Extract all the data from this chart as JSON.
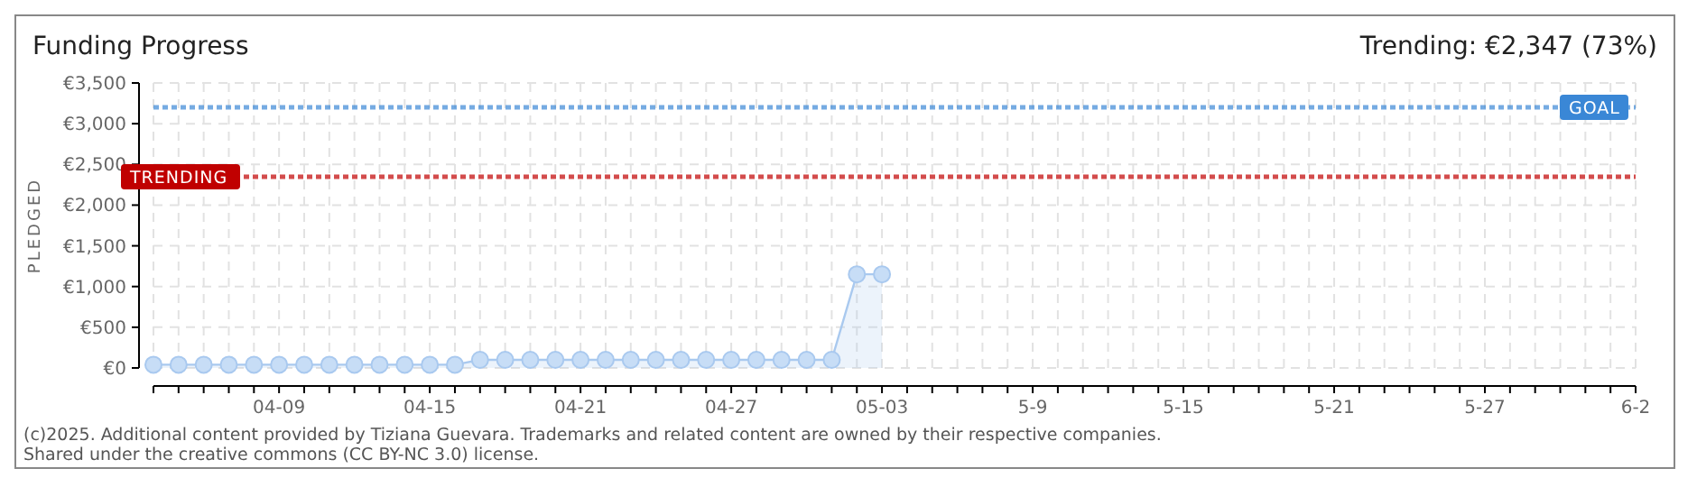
{
  "chart_data": {
    "type": "area",
    "title": "Funding Progress",
    "subtitle": "Trending: €2,347 (73%)",
    "ylabel": "PLEDGED",
    "x": [
      "--04-04",
      "--04-05",
      "--04-06",
      "--04-07",
      "--04-08",
      "--04-09",
      "--04-10",
      "--04-11",
      "--04-12",
      "--04-13",
      "--04-14",
      "--04-15",
      "--04-16",
      "--04-17",
      "--04-18",
      "--04-19",
      "--04-20",
      "--04-21",
      "--04-22",
      "--04-23",
      "--04-24",
      "--04-25",
      "--04-26",
      "--04-27",
      "--04-28",
      "--04-29",
      "--04-30",
      "--05-01",
      "--05-02",
      "--05-03"
    ],
    "series": [
      {
        "color": "#a9c9ef",
        "values": [
          40,
          40,
          40,
          40,
          40,
          40,
          40,
          40,
          40,
          40,
          40,
          40,
          40,
          100,
          100,
          100,
          100,
          100,
          100,
          100,
          100,
          100,
          100,
          100,
          100,
          100,
          100,
          100,
          1150,
          1150
        ]
      }
    ],
    "marker": "circle",
    "grid": true,
    "xlim": [
      "--04-04",
      "--06-02"
    ],
    "xticks": [
      {
        "value": "--04-04",
        "label": null
      },
      {
        "value": "--04-05",
        "label": null
      },
      {
        "value": "--04-06",
        "label": null
      },
      {
        "value": "--04-07",
        "label": null
      },
      {
        "value": "--04-08",
        "label": null
      },
      {
        "value": "--04-09",
        "label": "04-09"
      },
      {
        "value": "--04-10",
        "label": null
      },
      {
        "value": "--04-11",
        "label": null
      },
      {
        "value": "--04-12",
        "label": null
      },
      {
        "value": "--04-13",
        "label": null
      },
      {
        "value": "--04-14",
        "label": null
      },
      {
        "value": "--04-15",
        "label": "04-15"
      },
      {
        "value": "--04-16",
        "label": null
      },
      {
        "value": "--04-17",
        "label": null
      },
      {
        "value": "--04-18",
        "label": null
      },
      {
        "value": "--04-19",
        "label": null
      },
      {
        "value": "--04-20",
        "label": null
      },
      {
        "value": "--04-21",
        "label": "04-21"
      },
      {
        "value": "--04-22",
        "label": null
      },
      {
        "value": "--04-23",
        "label": null
      },
      {
        "value": "--04-24",
        "label": null
      },
      {
        "value": "--04-25",
        "label": null
      },
      {
        "value": "--04-26",
        "label": null
      },
      {
        "value": "--04-27",
        "label": "04-27"
      },
      {
        "value": "--04-28",
        "label": null
      },
      {
        "value": "--04-29",
        "label": null
      },
      {
        "value": "--04-30",
        "label": null
      },
      {
        "value": "--05-01",
        "label": null
      },
      {
        "value": "--05-02",
        "label": null
      },
      {
        "value": "--05-03",
        "label": "05-03"
      },
      {
        "value": "--05-04",
        "label": null
      },
      {
        "value": "--05-05",
        "label": null
      },
      {
        "value": "--05-06",
        "label": null
      },
      {
        "value": "--05-07",
        "label": null
      },
      {
        "value": "--05-08",
        "label": null
      },
      {
        "value": "--05-09",
        "label": "5-9"
      },
      {
        "value": "--05-10",
        "label": null
      },
      {
        "value": "--05-11",
        "label": null
      },
      {
        "value": "--05-12",
        "label": null
      },
      {
        "value": "--05-13",
        "label": null
      },
      {
        "value": "--05-14",
        "label": null
      },
      {
        "value": "--05-15",
        "label": "5-15"
      },
      {
        "value": "--05-16",
        "label": null
      },
      {
        "value": "--05-17",
        "label": null
      },
      {
        "value": "--05-18",
        "label": null
      },
      {
        "value": "--05-19",
        "label": null
      },
      {
        "value": "--05-20",
        "label": null
      },
      {
        "value": "--05-21",
        "label": "5-21"
      },
      {
        "value": "--05-22",
        "label": null
      },
      {
        "value": "--05-23",
        "label": null
      },
      {
        "value": "--05-24",
        "label": null
      },
      {
        "value": "--05-25",
        "label": null
      },
      {
        "value": "--05-26",
        "label": null
      },
      {
        "value": "--05-27",
        "label": "5-27"
      },
      {
        "value": "--05-28",
        "label": null
      },
      {
        "value": "--05-29",
        "label": null
      },
      {
        "value": "--05-30",
        "label": null
      },
      {
        "value": "--05-31",
        "label": null
      },
      {
        "value": "--06-01",
        "label": null
      },
      {
        "value": "--06-02",
        "label": "6-2"
      }
    ],
    "ylim": [
      0,
      3500
    ],
    "yticks": [
      {
        "value": 0,
        "label": "€0"
      },
      {
        "value": 500,
        "label": "€500"
      },
      {
        "value": 1000,
        "label": "€1,000"
      },
      {
        "value": 1500,
        "label": "€1,500"
      },
      {
        "value": 2000,
        "label": "€2,000"
      },
      {
        "value": 2500,
        "label": "€2,500"
      },
      {
        "value": 3000,
        "label": "€3,000"
      },
      {
        "value": 3500,
        "label": "€3,500"
      }
    ],
    "ref_lines": [
      {
        "axis": "y",
        "value": 3200,
        "label": "GOAL",
        "color": "#3a87d6",
        "line_style": "dotted"
      },
      {
        "axis": "y",
        "value": 2347,
        "label": "TRENDING",
        "color": "#c00000",
        "line_style": "dotted"
      }
    ],
    "annotations": [
      "(c)2025. Additional content provided by Tiziana Guevara. Trademarks and related content are owned by their respective companies.",
      "Shared under the creative commons (CC BY-NC 3.0) license."
    ]
  }
}
